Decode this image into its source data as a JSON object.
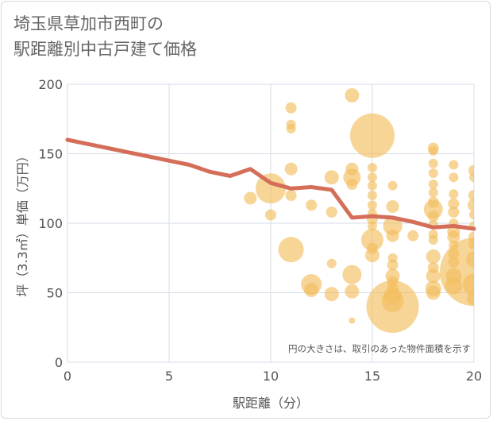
{
  "title_lines": [
    "埼玉県草加市西町の",
    "駅距離別中古戸建て価格"
  ],
  "chart_data": {
    "type": "scatter",
    "xlabel": "駅距離（分）",
    "ylabel": "坪（3.3㎡）単価（万円）",
    "xlim": [
      0,
      20
    ],
    "ylim": [
      0,
      200
    ],
    "xticks": [
      0,
      5,
      10,
      15,
      20
    ],
    "yticks": [
      0,
      50,
      100,
      150,
      200
    ],
    "grid": true,
    "annotation": "円の大きさは、取引のあった物件面積を示す",
    "colors": {
      "bubble": "#f3bf60",
      "line": "#d46e58",
      "grid": "#d6dde8",
      "plot_bg": "#ffffff"
    },
    "series": [
      {
        "type": "bubble",
        "points": [
          {
            "x": 9,
            "y": 118,
            "s": 8
          },
          {
            "x": 10,
            "y": 106,
            "s": 7
          },
          {
            "x": 10,
            "y": 125,
            "s": 19
          },
          {
            "x": 11,
            "y": 183,
            "s": 7
          },
          {
            "x": 11,
            "y": 171,
            "s": 6
          },
          {
            "x": 11,
            "y": 168,
            "s": 6
          },
          {
            "x": 11,
            "y": 139,
            "s": 8
          },
          {
            "x": 11,
            "y": 81,
            "s": 16
          },
          {
            "x": 11,
            "y": 120,
            "s": 7
          },
          {
            "x": 12,
            "y": 113,
            "s": 7
          },
          {
            "x": 12,
            "y": 56,
            "s": 13
          },
          {
            "x": 12,
            "y": 52,
            "s": 9
          },
          {
            "x": 13,
            "y": 133,
            "s": 9
          },
          {
            "x": 13,
            "y": 108,
            "s": 7
          },
          {
            "x": 13,
            "y": 71,
            "s": 6
          },
          {
            "x": 13,
            "y": 49,
            "s": 9
          },
          {
            "x": 14,
            "y": 192,
            "s": 9
          },
          {
            "x": 14,
            "y": 139,
            "s": 8
          },
          {
            "x": 14,
            "y": 133,
            "s": 11
          },
          {
            "x": 14,
            "y": 128,
            "s": 7
          },
          {
            "x": 14,
            "y": 63,
            "s": 12
          },
          {
            "x": 14,
            "y": 51,
            "s": 9
          },
          {
            "x": 14,
            "y": 30,
            "s": 4
          },
          {
            "x": 15,
            "y": 163,
            "s": 28
          },
          {
            "x": 15,
            "y": 140,
            "s": 6
          },
          {
            "x": 15,
            "y": 133,
            "s": 6
          },
          {
            "x": 15,
            "y": 127,
            "s": 6
          },
          {
            "x": 15,
            "y": 120,
            "s": 6
          },
          {
            "x": 15,
            "y": 113,
            "s": 6
          },
          {
            "x": 15,
            "y": 107,
            "s": 6
          },
          {
            "x": 15,
            "y": 103,
            "s": 7
          },
          {
            "x": 15,
            "y": 98,
            "s": 6
          },
          {
            "x": 15,
            "y": 88,
            "s": 14
          },
          {
            "x": 15,
            "y": 82,
            "s": 7
          },
          {
            "x": 15,
            "y": 77,
            "s": 9
          },
          {
            "x": 16,
            "y": 127,
            "s": 6
          },
          {
            "x": 16,
            "y": 112,
            "s": 8
          },
          {
            "x": 16,
            "y": 98,
            "s": 12
          },
          {
            "x": 16,
            "y": 91,
            "s": 8
          },
          {
            "x": 16,
            "y": 75,
            "s": 6
          },
          {
            "x": 16,
            "y": 70,
            "s": 7
          },
          {
            "x": 16,
            "y": 62,
            "s": 9
          },
          {
            "x": 16,
            "y": 58,
            "s": 7
          },
          {
            "x": 16,
            "y": 53,
            "s": 7
          },
          {
            "x": 16,
            "y": 48,
            "s": 11
          },
          {
            "x": 16,
            "y": 44,
            "s": 14
          },
          {
            "x": 16,
            "y": 40,
            "s": 33
          },
          {
            "x": 17,
            "y": 91,
            "s": 7
          },
          {
            "x": 18,
            "y": 154,
            "s": 7
          },
          {
            "x": 18,
            "y": 152,
            "s": 6
          },
          {
            "x": 18,
            "y": 143,
            "s": 6
          },
          {
            "x": 18,
            "y": 136,
            "s": 6
          },
          {
            "x": 18,
            "y": 128,
            "s": 6
          },
          {
            "x": 18,
            "y": 122,
            "s": 6
          },
          {
            "x": 18,
            "y": 115,
            "s": 7
          },
          {
            "x": 18,
            "y": 110,
            "s": 12
          },
          {
            "x": 18,
            "y": 105,
            "s": 7
          },
          {
            "x": 18,
            "y": 99,
            "s": 6
          },
          {
            "x": 18,
            "y": 92,
            "s": 6
          },
          {
            "x": 18,
            "y": 88,
            "s": 6
          },
          {
            "x": 18,
            "y": 76,
            "s": 9
          },
          {
            "x": 18,
            "y": 68,
            "s": 7
          },
          {
            "x": 18,
            "y": 62,
            "s": 9
          },
          {
            "x": 18,
            "y": 53,
            "s": 10
          },
          {
            "x": 18,
            "y": 50,
            "s": 9
          },
          {
            "x": 19,
            "y": 142,
            "s": 6
          },
          {
            "x": 19,
            "y": 133,
            "s": 6
          },
          {
            "x": 19,
            "y": 121,
            "s": 6
          },
          {
            "x": 19,
            "y": 114,
            "s": 7
          },
          {
            "x": 19,
            "y": 108,
            "s": 7
          },
          {
            "x": 19,
            "y": 100,
            "s": 6
          },
          {
            "x": 19,
            "y": 94,
            "s": 8
          },
          {
            "x": 19,
            "y": 90,
            "s": 8
          },
          {
            "x": 19,
            "y": 84,
            "s": 6
          },
          {
            "x": 19,
            "y": 78,
            "s": 7
          },
          {
            "x": 19,
            "y": 72,
            "s": 7
          },
          {
            "x": 19,
            "y": 62,
            "s": 10
          },
          {
            "x": 19,
            "y": 55,
            "s": 11
          },
          {
            "x": 20,
            "y": 138,
            "s": 7
          },
          {
            "x": 20,
            "y": 133,
            "s": 6
          },
          {
            "x": 20,
            "y": 120,
            "s": 7
          },
          {
            "x": 20,
            "y": 113,
            "s": 8
          },
          {
            "x": 20,
            "y": 106,
            "s": 6
          },
          {
            "x": 20,
            "y": 98,
            "s": 6
          },
          {
            "x": 20,
            "y": 90,
            "s": 7
          },
          {
            "x": 20,
            "y": 85,
            "s": 7
          },
          {
            "x": 20,
            "y": 74,
            "s": 10
          },
          {
            "x": 20,
            "y": 65,
            "s": 43
          },
          {
            "x": 20,
            "y": 56,
            "s": 14
          },
          {
            "x": 20,
            "y": 46,
            "s": 9
          }
        ]
      },
      {
        "type": "line",
        "points": [
          {
            "x": 0,
            "y": 160
          },
          {
            "x": 1,
            "y": 157
          },
          {
            "x": 2,
            "y": 154
          },
          {
            "x": 3,
            "y": 151
          },
          {
            "x": 4,
            "y": 148
          },
          {
            "x": 5,
            "y": 145
          },
          {
            "x": 6,
            "y": 142
          },
          {
            "x": 7,
            "y": 137
          },
          {
            "x": 8,
            "y": 134
          },
          {
            "x": 9,
            "y": 139
          },
          {
            "x": 10,
            "y": 129
          },
          {
            "x": 11,
            "y": 125
          },
          {
            "x": 12,
            "y": 126
          },
          {
            "x": 13,
            "y": 124
          },
          {
            "x": 14,
            "y": 104
          },
          {
            "x": 15,
            "y": 105
          },
          {
            "x": 16,
            "y": 104
          },
          {
            "x": 17,
            "y": 101
          },
          {
            "x": 18,
            "y": 97
          },
          {
            "x": 19,
            "y": 98
          },
          {
            "x": 20,
            "y": 96
          }
        ]
      }
    ]
  }
}
